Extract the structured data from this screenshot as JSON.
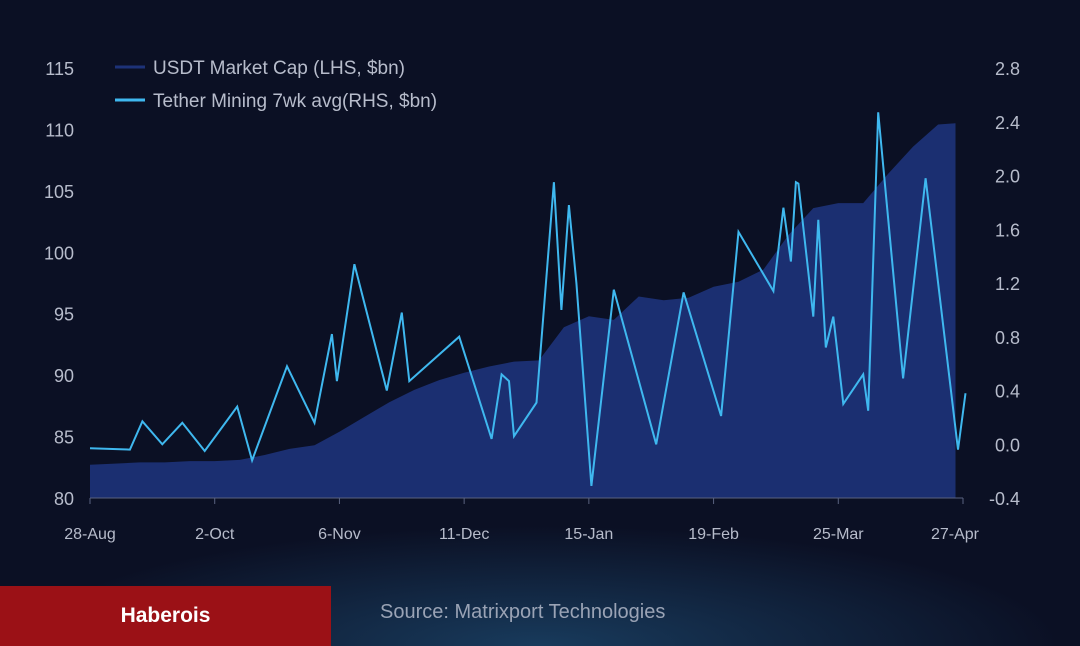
{
  "chart_data": {
    "type": "line",
    "x": [
      "28-Aug",
      "4-Sep",
      "11-Sep",
      "18-Sep",
      "25-Sep",
      "2-Oct",
      "9-Oct",
      "16-Oct",
      "23-Oct",
      "30-Oct",
      "6-Nov",
      "13-Nov",
      "20-Nov",
      "27-Nov",
      "4-Dec",
      "11-Dec",
      "18-Dec",
      "25-Dec",
      "1-Jan",
      "8-Jan",
      "15-Jan",
      "22-Jan",
      "29-Jan",
      "5-Feb",
      "12-Feb",
      "19-Feb",
      "26-Feb",
      "4-Mar",
      "11-Mar",
      "18-Mar",
      "25-Mar",
      "1-Apr",
      "8-Apr",
      "15-Apr",
      "22-Apr",
      "27-Apr"
    ],
    "xticks": [
      "28-Aug",
      "2-Oct",
      "6-Nov",
      "11-Dec",
      "15-Jan",
      "19-Feb",
      "25-Mar",
      "27-Apr"
    ],
    "series": [
      {
        "name": "USDT Market Cap (LHS, $bn)",
        "type": "area",
        "axis": "left",
        "color": "#1d3278",
        "x": [
          0,
          1,
          2,
          3,
          4,
          5,
          6,
          7,
          8,
          9,
          10,
          11,
          12,
          13,
          14,
          15,
          16,
          17,
          18,
          19,
          20,
          21,
          22,
          23,
          24,
          25,
          26,
          27,
          28,
          29,
          30,
          31,
          32,
          33,
          34,
          34.7
        ],
        "values": [
          82.7,
          82.8,
          82.9,
          82.9,
          83.0,
          83.0,
          83.1,
          83.5,
          84.0,
          84.3,
          85.4,
          86.6,
          87.8,
          88.8,
          89.6,
          90.2,
          90.7,
          91.1,
          91.2,
          93.9,
          94.8,
          94.5,
          96.4,
          96.1,
          96.3,
          97.2,
          97.6,
          98.6,
          101.4,
          103.6,
          104.0,
          104.0,
          106.4,
          108.6,
          110.4,
          110.5
        ]
      },
      {
        "name": "Tether Mining 7wk avg(RHS, $bn)",
        "type": "line",
        "axis": "right",
        "color": "#3fb8ef",
        "x": [
          0,
          1.6,
          2.1,
          2.9,
          3.7,
          4.6,
          5.9,
          6.5,
          7.9,
          9.0,
          9.7,
          9.9,
          10.6,
          11.9,
          12.5,
          12.8,
          14.8,
          16.1,
          16.5,
          16.8,
          17.0,
          17.9,
          18.6,
          18.9,
          19.2,
          19.5,
          20.1,
          21.0,
          22.7,
          23.8,
          25.3,
          26.0,
          27.4,
          27.8,
          28.1,
          28.3,
          28.4,
          29.0,
          29.2,
          29.5,
          29.8,
          30.2,
          31.0,
          31.2,
          31.6,
          32.6,
          33.5,
          34.8,
          35.1
        ],
        "values": [
          -0.03,
          -0.04,
          0.17,
          0.0,
          0.16,
          -0.05,
          0.28,
          -0.12,
          0.58,
          0.16,
          0.82,
          0.47,
          1.34,
          0.4,
          0.98,
          0.47,
          0.8,
          0.04,
          0.52,
          0.47,
          0.06,
          0.31,
          1.95,
          1.0,
          1.78,
          1.2,
          -0.31,
          1.15,
          0.0,
          1.13,
          0.21,
          1.58,
          1.14,
          1.76,
          1.36,
          1.95,
          1.94,
          0.95,
          1.67,
          0.72,
          0.95,
          0.3,
          0.52,
          0.25,
          2.47,
          0.49,
          1.98,
          -0.04,
          0.38
        ]
      }
    ],
    "ylim": [
      80,
      115
    ],
    "y2lim": [
      -0.4,
      2.8
    ],
    "yticks": [
      80,
      85,
      90,
      95,
      100,
      105,
      110,
      115
    ],
    "y2ticks": [
      -0.4,
      0.0,
      0.4,
      0.8,
      1.2,
      1.6,
      2.0,
      2.4,
      2.8
    ],
    "legend": "top-left",
    "grid": false
  },
  "footer": {
    "brand": "Haberois",
    "source": "Source: Matrixport Technologies"
  },
  "colors": {
    "background": "#0b1024",
    "area": "#1d3278",
    "line": "#3fb8ef",
    "brand": "#9b1116"
  }
}
